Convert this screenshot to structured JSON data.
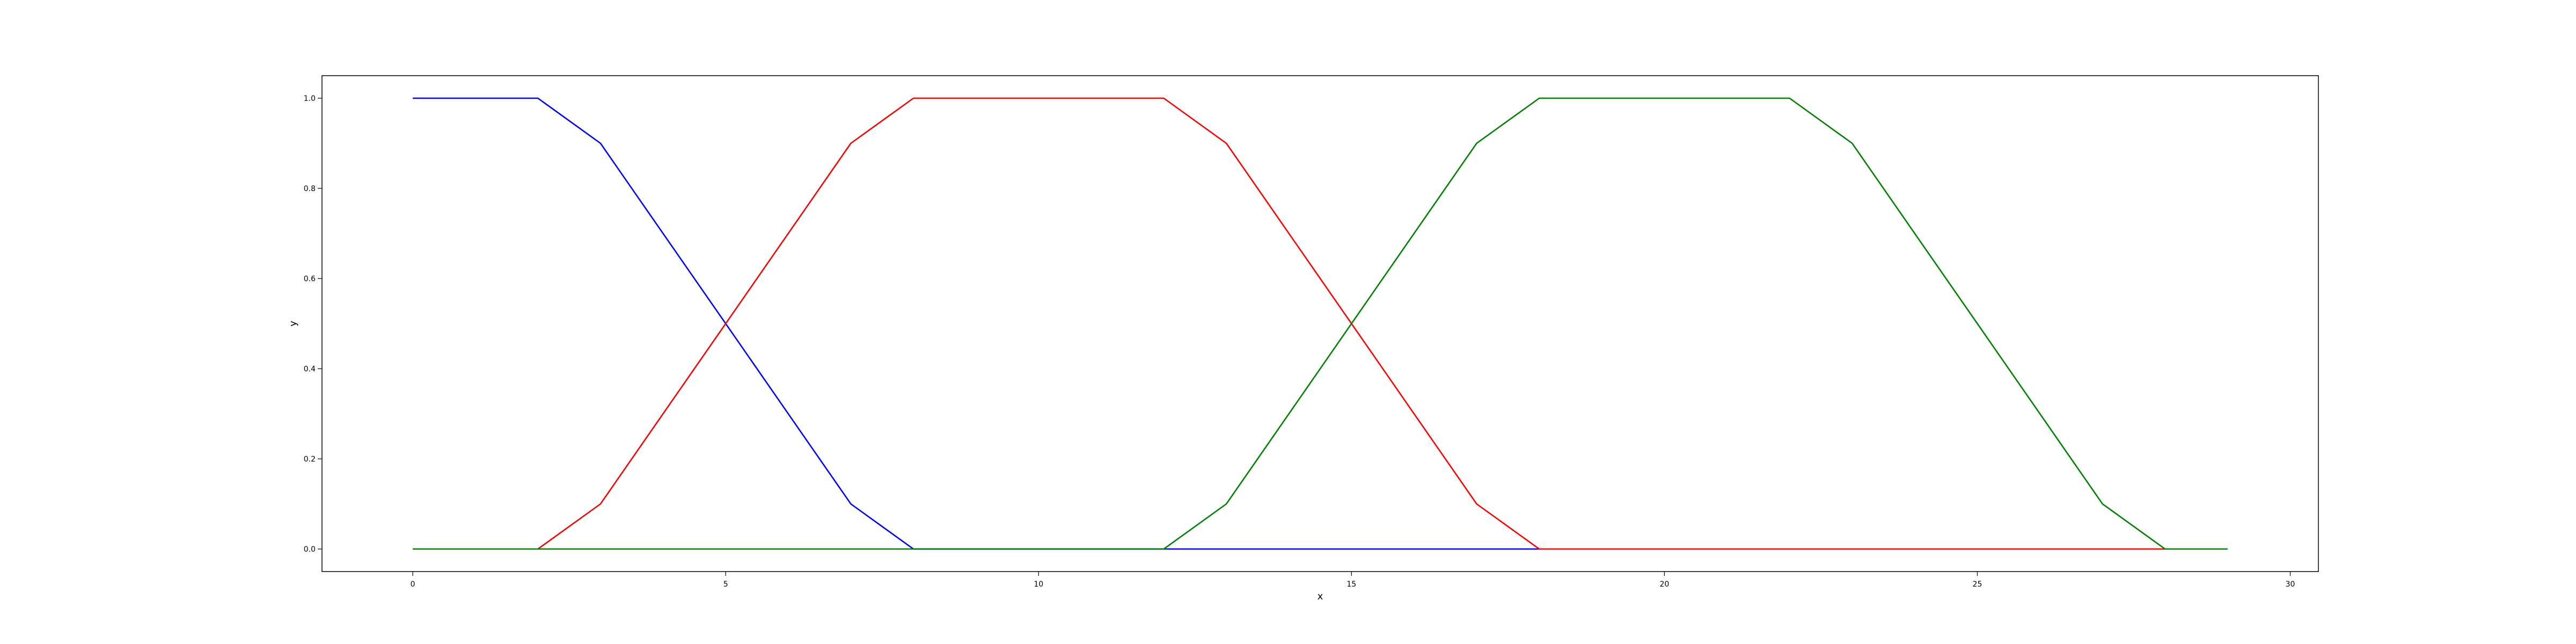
{
  "chart_data": {
    "type": "line",
    "title": "",
    "xlabel": "x",
    "ylabel": "y",
    "xlim": [
      -1.45,
      30.45
    ],
    "ylim": [
      -0.05,
      1.05
    ],
    "xticks": [
      0,
      5,
      10,
      15,
      20,
      25,
      30
    ],
    "xtick_labels": [
      "0",
      "5",
      "10",
      "15",
      "20",
      "25",
      "30"
    ],
    "yticks": [
      0.0,
      0.2,
      0.4,
      0.6,
      0.8,
      1.0
    ],
    "ytick_labels": [
      "0.0",
      "0.2",
      "0.4",
      "0.6",
      "0.8",
      "1.0"
    ],
    "grid": false,
    "legend": "none",
    "series": [
      {
        "color": "#0000ff",
        "x": [
          0,
          1,
          2,
          3,
          4,
          5,
          6,
          7,
          8,
          9,
          10,
          11,
          12,
          13,
          14,
          15,
          16,
          17,
          18
        ],
        "y": [
          1,
          1,
          1,
          0.9,
          0.7,
          0.5,
          0.3,
          0.1,
          0,
          0,
          0,
          0,
          0,
          0,
          0,
          0,
          0,
          0,
          0
        ]
      },
      {
        "color": "#ff0000",
        "x": [
          2,
          3,
          4,
          5,
          6,
          7,
          8,
          9,
          10,
          11,
          12,
          13,
          14,
          15,
          16,
          17,
          18,
          19,
          20,
          21,
          22,
          23,
          24,
          25,
          26,
          27,
          28
        ],
        "y": [
          0,
          0.1,
          0.3,
          0.5,
          0.7,
          0.9,
          1,
          1,
          1,
          1,
          1,
          0.9,
          0.7,
          0.5,
          0.3,
          0.1,
          0,
          0,
          0,
          0,
          0,
          0,
          0,
          0,
          0,
          0,
          0
        ]
      },
      {
        "color": "#008000",
        "x": [
          0,
          1,
          2,
          3,
          4,
          5,
          6,
          7,
          8,
          9,
          10,
          11,
          12,
          13,
          14,
          15,
          16,
          17,
          18,
          19,
          20,
          21,
          22,
          23,
          24,
          25,
          26,
          27,
          28,
          29
        ],
        "y": [
          0,
          0,
          0,
          0,
          0,
          0,
          0,
          0,
          0,
          0,
          0,
          0,
          0,
          0.1,
          0.3,
          0.5,
          0.7,
          0.9,
          1,
          1,
          1,
          1,
          1,
          0.9,
          0.7,
          0.5,
          0.3,
          0.1,
          0,
          0
        ]
      }
    ]
  }
}
